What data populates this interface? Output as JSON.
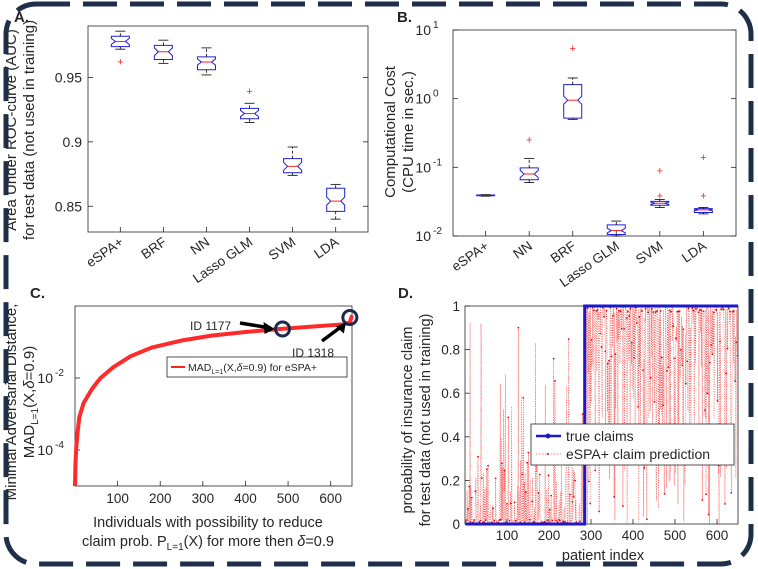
{
  "frame_color": "#1f2f4a",
  "chart_data": [
    {
      "panel": "A.",
      "type": "box",
      "categories": [
        "eSPA+",
        "BRF",
        "NN",
        "Lasso GLM",
        "SVM",
        "LDA"
      ],
      "ylabel_lines": [
        "Area Under ROC-curve (AUC)",
        "for test data (not used in training)"
      ],
      "ylim": [
        0.83,
        0.99
      ],
      "yticks": [
        0.85,
        0.9,
        0.95
      ],
      "ytick_labels": [
        "0.85",
        "0.9",
        "0.95"
      ],
      "series": [
        {
          "name": "eSPA+",
          "min": 0.972,
          "q1": 0.974,
          "median": 0.978,
          "q3": 0.982,
          "max": 0.986,
          "outliers": [
            0.962
          ]
        },
        {
          "name": "BRF",
          "min": 0.961,
          "q1": 0.964,
          "median": 0.97,
          "q3": 0.975,
          "max": 0.979,
          "outliers": []
        },
        {
          "name": "NN",
          "min": 0.952,
          "q1": 0.956,
          "median": 0.962,
          "q3": 0.966,
          "max": 0.973,
          "outliers": []
        },
        {
          "name": "Lasso GLM",
          "min": 0.915,
          "q1": 0.918,
          "median": 0.922,
          "q3": 0.926,
          "max": 0.93,
          "outliers": [
            0.939
          ]
        },
        {
          "name": "SVM",
          "min": 0.874,
          "q1": 0.876,
          "median": 0.881,
          "q3": 0.887,
          "max": 0.896,
          "outliers": []
        },
        {
          "name": "LDA",
          "min": 0.84,
          "q1": 0.846,
          "median": 0.854,
          "q3": 0.864,
          "max": 0.867,
          "outliers": []
        }
      ]
    },
    {
      "panel": "B.",
      "type": "box",
      "yscale": "log",
      "categories": [
        "eSPA+",
        "NN",
        "BRF",
        "Lasso GLM",
        "SVM",
        "LDA"
      ],
      "ylabel_lines": [
        "Computational Cost",
        "(CPU time in sec.)"
      ],
      "ylim": [
        0.01,
        10
      ],
      "ytick_base": "10",
      "ytick_exponents": [
        "-2",
        "-1",
        "0",
        "1"
      ],
      "yticks": [
        0.01,
        0.1,
        1,
        10
      ],
      "series": [
        {
          "name": "eSPA+",
          "min": 0.038,
          "q1": 0.0385,
          "median": 0.039,
          "q3": 0.0395,
          "max": 0.04,
          "outliers": []
        },
        {
          "name": "NN",
          "min": 0.06,
          "q1": 0.066,
          "median": 0.08,
          "q3": 0.098,
          "max": 0.135,
          "outliers": [
            0.25
          ]
        },
        {
          "name": "BRF",
          "min": 0.5,
          "q1": 0.52,
          "median": 0.95,
          "q3": 1.6,
          "max": 2.0,
          "outliers": [
            5.4
          ]
        },
        {
          "name": "Lasso GLM",
          "min": 0.01,
          "q1": 0.0105,
          "median": 0.012,
          "q3": 0.0145,
          "max": 0.0165,
          "outliers": []
        },
        {
          "name": "SVM",
          "min": 0.026,
          "q1": 0.028,
          "median": 0.03,
          "q3": 0.032,
          "max": 0.034,
          "outliers": [
            0.038,
            0.088
          ]
        },
        {
          "name": "LDA",
          "min": 0.021,
          "q1": 0.022,
          "median": 0.024,
          "q3": 0.025,
          "max": 0.026,
          "outliers": [
            0.038,
            0.14
          ]
        }
      ]
    },
    {
      "panel": "C.",
      "type": "line",
      "yscale": "log",
      "xlabel_lines": [
        "Individuals with possibility to reduce",
        "claim prob. P",
        "L=1",
        "(X) for more then ",
        "δ",
        "=0.9"
      ],
      "ylabel_lines": [
        "Minimal Adversarial Distance,",
        "MAD",
        "L=1",
        "(X,",
        "δ",
        "=0.9)"
      ],
      "xlim": [
        0,
        650
      ],
      "xticks": [
        100,
        200,
        300,
        400,
        500,
        600
      ],
      "ylim": [
        1e-05,
        1
      ],
      "ytick_base": "10",
      "ytick_exponents": [
        "-4",
        "-2"
      ],
      "yticks": [
        0.0001,
        0.01
      ],
      "curve": {
        "points": [
          [
            0,
            1e-05
          ],
          [
            1,
            4e-05
          ],
          [
            3,
            0.00012
          ],
          [
            6,
            0.0003
          ],
          [
            10,
            0.0008
          ],
          [
            20,
            0.002
          ],
          [
            40,
            0.005
          ],
          [
            60,
            0.01
          ],
          [
            90,
            0.02
          ],
          [
            130,
            0.04
          ],
          [
            180,
            0.07
          ],
          [
            250,
            0.11
          ],
          [
            320,
            0.15
          ],
          [
            400,
            0.19
          ],
          [
            480,
            0.23
          ],
          [
            560,
            0.27
          ],
          [
            630,
            0.31
          ],
          [
            645,
            0.35
          ],
          [
            650,
            0.55
          ]
        ]
      },
      "legend": {
        "label": "MAD",
        "sub": "L=1",
        "rest_a": "(X,",
        "delta": "δ",
        "rest_b": "=0.9) for eSPA+"
      },
      "annotations": [
        {
          "label": "ID 1177",
          "x": 487,
          "y": 0.23
        },
        {
          "label": "ID 1318",
          "x": 645,
          "y": 0.48
        }
      ]
    },
    {
      "panel": "D.",
      "type": "line",
      "xlabel": "patient index",
      "ylabel_lines": [
        "probability of insurance claim",
        "for test data (not used in training)"
      ],
      "xlim": [
        0,
        650
      ],
      "xticks": [
        100,
        200,
        300,
        400,
        500,
        600
      ],
      "ylim": [
        0,
        1
      ],
      "yticks": [
        0,
        0.2,
        0.4,
        0.6,
        0.8,
        1
      ],
      "ytick_labels": [
        "0",
        "0.2",
        "0.4",
        "0.6",
        "0.8",
        "1"
      ],
      "true_step_at": 285,
      "legend": [
        "true claims",
        "eSPA+ claim prediction"
      ],
      "series_colors": {
        "true": "#1a1acc",
        "pred": "#ff5050"
      }
    }
  ]
}
